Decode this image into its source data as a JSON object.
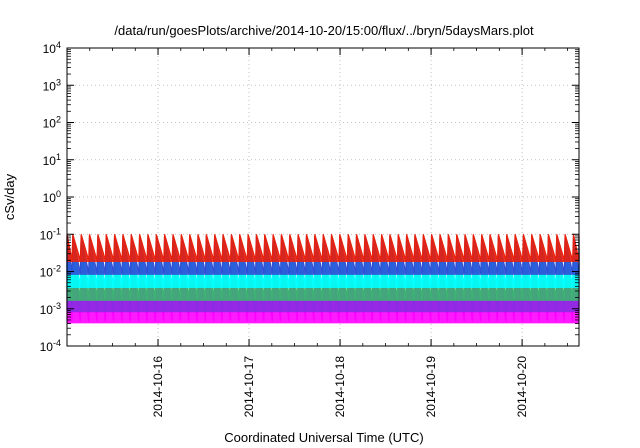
{
  "chart_data": {
    "type": "line",
    "title": "/data/run/goesPlots/archive/2014-10-20/15:00/flux/../bryn/5daysMars.plot",
    "xlabel": "Coordinated Universal Time (UTC)",
    "ylabel": "cSv/day",
    "yscale": "log",
    "ylim_exponents": [
      -4,
      4
    ],
    "y_tick_labels": [
      {
        "base": "10",
        "exp": "-4"
      },
      {
        "base": "10",
        "exp": "-3"
      },
      {
        "base": "10",
        "exp": "-2"
      },
      {
        "base": "10",
        "exp": "-1"
      },
      {
        "base": "10",
        "exp": "0"
      },
      {
        "base": "10",
        "exp": "1"
      },
      {
        "base": "10",
        "exp": "2"
      },
      {
        "base": "10",
        "exp": "3"
      },
      {
        "base": "10",
        "exp": "4"
      }
    ],
    "xlim": [
      "2014-10-15 00:00",
      "2014-10-20 15:00"
    ],
    "x_tick_labels": [
      "2014-10-16",
      "2014-10-17",
      "2014-10-18",
      "2014-10-19",
      "2014-10-20"
    ],
    "grid": true,
    "cycle_period_hours": 2.2,
    "series": [
      {
        "color": "#ff00ff",
        "peak": 0.025,
        "trough": 0.00045
      },
      {
        "color": "#8a2be2",
        "peak": 0.04,
        "trough": 0.0009
      },
      {
        "color": "#3cb371",
        "peak": 0.06,
        "trough": 0.0018
      },
      {
        "color": "#00ffff",
        "peak": 0.075,
        "trough": 0.004
      },
      {
        "color": "#2f4fd6",
        "peak": 0.09,
        "trough": 0.009
      },
      {
        "color": "#e8200c",
        "peak": 0.1,
        "trough": 0.02
      }
    ]
  }
}
